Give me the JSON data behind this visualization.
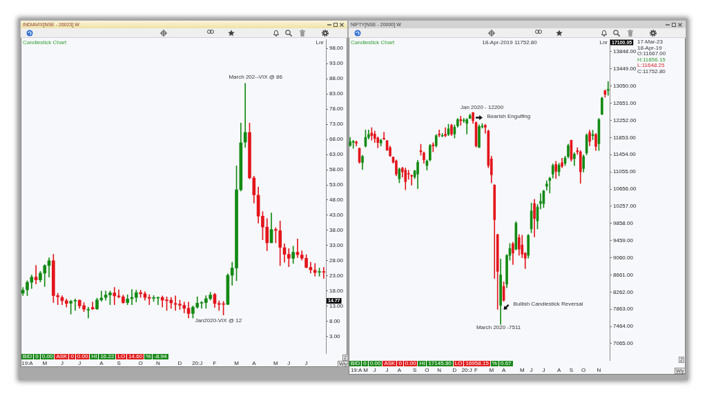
{
  "chart_data": [
    {
      "type": "candlestick",
      "title": "INDIAVIX[NSE - 26023] W",
      "subtitle": "Candlestick Chart",
      "categories": [
        null,
        "19:A",
        null,
        null,
        null,
        "M",
        null,
        null,
        null,
        "J",
        null,
        null,
        null,
        "J",
        null,
        null,
        null,
        null,
        "A",
        null,
        null,
        null,
        "S",
        null,
        null,
        null,
        null,
        "O",
        null,
        null,
        null,
        "N",
        null,
        null,
        null,
        null,
        "D",
        null,
        null,
        null,
        "20:J",
        null,
        null,
        null,
        "F",
        null,
        null,
        null,
        null,
        "M",
        null,
        null,
        null,
        "A",
        null,
        null,
        null,
        null,
        "M",
        null,
        null,
        "J",
        null,
        null,
        null,
        "J",
        null,
        null,
        null,
        null
      ],
      "ohlc": [
        [
          17.3,
          19.2,
          16.5,
          18.3
        ],
        [
          18.4,
          21.4,
          16.5,
          20.9
        ],
        [
          20.9,
          23.3,
          18.8,
          22.6
        ],
        [
          22.6,
          26.4,
          20.3,
          21.7
        ],
        [
          21.7,
          24.5,
          21.0,
          23.9
        ],
        [
          23.9,
          26.7,
          19.5,
          26.4
        ],
        [
          26.4,
          29.0,
          22.6,
          28.0
        ],
        [
          28.0,
          30.1,
          14.2,
          16.5
        ],
        [
          16.5,
          17.3,
          13.5,
          16.1
        ],
        [
          15.9,
          16.5,
          13.5,
          14.8
        ],
        [
          14.8,
          15.4,
          12.7,
          13.9
        ],
        [
          14.0,
          15.0,
          10.4,
          14.6
        ],
        [
          14.7,
          15.4,
          11.6,
          14.9
        ],
        [
          15.0,
          15.1,
          12.3,
          13.1
        ],
        [
          13.2,
          14.2,
          11.2,
          12.0
        ],
        [
          11.7,
          12.7,
          9.1,
          11.9
        ],
        [
          12.6,
          14.4,
          11.9,
          12.1
        ],
        [
          12.1,
          15.7,
          11.9,
          15.1
        ],
        [
          15.1,
          18.0,
          14.6,
          15.7
        ],
        [
          15.9,
          18.0,
          15.0,
          16.7
        ],
        [
          16.7,
          18.0,
          13.5,
          17.4
        ],
        [
          17.4,
          19.2,
          13.5,
          16.4
        ],
        [
          16.4,
          18.4,
          15.7,
          16.1
        ],
        [
          16.1,
          16.7,
          13.9,
          14.2
        ],
        [
          14.2,
          16.8,
          13.5,
          15.4
        ],
        [
          15.5,
          18.5,
          13.5,
          15.9
        ],
        [
          15.9,
          18.3,
          14.4,
          17.5
        ],
        [
          17.5,
          18.3,
          15.9,
          17.1
        ],
        [
          17.1,
          17.8,
          15.0,
          15.9
        ],
        [
          15.9,
          16.8,
          13.5,
          15.6
        ],
        [
          15.6,
          16.5,
          14.6,
          15.8
        ],
        [
          15.7,
          16.1,
          13.5,
          15.9
        ],
        [
          15.9,
          16.4,
          12.7,
          15.0
        ],
        [
          15.1,
          16.1,
          11.6,
          14.8
        ],
        [
          15.0,
          15.9,
          12.3,
          14.1
        ],
        [
          13.9,
          16.4,
          11.6,
          13.6
        ],
        [
          13.7,
          15.0,
          11.9,
          13.3
        ],
        [
          13.3,
          14.4,
          10.8,
          12.3
        ],
        [
          12.3,
          14.4,
          9.1,
          10.6
        ],
        [
          10.6,
          13.1,
          9.1,
          12.7
        ],
        [
          12.7,
          16.1,
          12.3,
          14.0
        ],
        [
          14.0,
          14.6,
          12.3,
          14.2
        ],
        [
          14.2,
          16.5,
          12.3,
          15.5
        ],
        [
          15.5,
          17.6,
          15.0,
          16.7
        ],
        [
          16.9,
          17.3,
          12.6,
          13.9
        ],
        [
          13.9,
          14.8,
          11.6,
          13.6
        ],
        [
          13.7,
          14.6,
          10.1,
          13.6
        ],
        [
          13.6,
          23.7,
          13.5,
          23.2
        ],
        [
          23.2,
          27.5,
          19.9,
          25.6
        ],
        [
          25.6,
          59.3,
          21.4,
          51.4
        ],
        [
          51.4,
          73.4,
          51.0,
          66.9
        ],
        [
          67.1,
          86.5,
          65.4,
          70.3
        ],
        [
          70.3,
          73.4,
          55.0,
          55.3
        ],
        [
          55.3,
          55.9,
          47.0,
          49.7
        ],
        [
          49.6,
          52.3,
          40.4,
          42.7
        ],
        [
          42.7,
          44.2,
          34.9,
          39.1
        ],
        [
          39.1,
          41.9,
          31.3,
          33.9
        ],
        [
          33.9,
          43.8,
          33.9,
          38.3
        ],
        [
          38.3,
          38.9,
          33.9,
          38.0
        ],
        [
          37.9,
          41.1,
          26.4,
          32.4
        ],
        [
          32.3,
          33.6,
          27.5,
          30.1
        ],
        [
          30.1,
          32.0,
          26.0,
          28.8
        ],
        [
          28.8,
          32.8,
          27.1,
          30.8
        ],
        [
          30.8,
          35.2,
          29.0,
          30.0
        ],
        [
          29.9,
          31.3,
          28.2,
          28.8
        ],
        [
          28.8,
          30.0,
          25.6,
          25.8
        ],
        [
          25.8,
          27.5,
          23.9,
          25.0
        ],
        [
          24.9,
          27.1,
          22.9,
          24.1
        ],
        [
          24.2,
          25.6,
          22.9,
          24.4
        ],
        [
          24.4,
          25.8,
          22.2,
          24.2
        ]
      ],
      "colors": [
        "#138a13",
        "#138a13",
        "#138a13",
        "#e3151b",
        "#138a13",
        "#138a13",
        "#138a13",
        "#e3151b",
        "#e3151b",
        "#e3151b",
        "#e3151b",
        "#138a13",
        "#138a13",
        "#e3151b",
        "#e3151b",
        "#138a13",
        "#e3151b",
        "#138a13",
        "#138a13",
        "#138a13",
        "#138a13",
        "#e3151b",
        "#e3151b",
        "#e3151b",
        "#138a13",
        "#138a13",
        "#138a13",
        "#e3151b",
        "#e3151b",
        "#e3151b",
        "#138a13",
        "#138a13",
        "#e3151b",
        "#e3151b",
        "#e3151b",
        "#e3151b",
        "#e3151b",
        "#e3151b",
        "#e3151b",
        "#138a13",
        "#138a13",
        "#138a13",
        "#138a13",
        "#138a13",
        "#e3151b",
        "#e3151b",
        "#e3151b",
        "#138a13",
        "#138a13",
        "#138a13",
        "#138a13",
        "#138a13",
        "#e3151b",
        "#e3151b",
        "#e3151b",
        "#e3151b",
        "#e3151b",
        "#138a13",
        "#e3151b",
        "#e3151b",
        "#e3151b",
        "#e3151b",
        "#138a13",
        "#e3151b",
        "#e3151b",
        "#e3151b",
        "#e3151b",
        "#e3151b",
        "#138a13",
        "#e3151b"
      ],
      "ylim": [
        -2.5,
        101
      ],
      "yticks": [
        {
          "value": 3,
          "label": "3.00"
        },
        {
          "value": 8,
          "label": "8.00"
        },
        {
          "value": 13,
          "label": "13.00"
        },
        {
          "value": 18,
          "label": "18.00"
        },
        {
          "value": 23,
          "label": "23.00"
        },
        {
          "value": 28,
          "label": "28.00"
        },
        {
          "value": 33,
          "label": "33.00"
        },
        {
          "value": 38,
          "label": "38.00"
        },
        {
          "value": 43,
          "label": "43.00"
        },
        {
          "value": 48,
          "label": "48.00"
        },
        {
          "value": 53,
          "label": "53.00"
        },
        {
          "value": 58,
          "label": "58.00"
        },
        {
          "value": 63,
          "label": "63.00"
        },
        {
          "value": 68,
          "label": "68.00"
        },
        {
          "value": 73,
          "label": "73.00"
        },
        {
          "value": 78,
          "label": "78.00"
        },
        {
          "value": 83,
          "label": "83.00"
        },
        {
          "value": 88,
          "label": "88.00"
        },
        {
          "value": 93,
          "label": "93.00"
        },
        {
          "value": 98,
          "label": "98.00"
        }
      ],
      "annotations": [
        "March 202--VIX @ 86",
        "Jan2020-VIX @ 12",
        {
          "text": "14.77",
          "y": 14.77
        },
        "Lnr",
        "BID",
        "0",
        "0.00",
        "ASK",
        "0",
        "0.00",
        "HI",
        "16.22",
        "LO",
        "14.60",
        "%",
        "-8.94",
        "Z",
        "Wly"
      ]
    },
    {
      "type": "candlestick",
      "title": "NIFTY[NSE - 20000] W",
      "subtitle": "Candlestick Chart",
      "categories": [
        null,
        null,
        "19:A",
        null,
        null,
        "M",
        null,
        null,
        "J",
        null,
        null,
        null,
        "J",
        null,
        null,
        null,
        "A",
        null,
        null,
        null,
        null,
        "S",
        null,
        null,
        null,
        "O",
        null,
        null,
        null,
        "N",
        null,
        null,
        null,
        null,
        "D",
        null,
        null,
        null,
        "20:J",
        null,
        null,
        "F",
        null,
        null,
        null,
        null,
        "M",
        null,
        null,
        null,
        "A",
        null,
        null,
        null,
        null,
        null,
        "M",
        null,
        null,
        "J",
        null,
        null,
        null,
        "J",
        null,
        null,
        null,
        null,
        "A",
        null,
        null,
        null,
        "S",
        null,
        null,
        null,
        "O",
        null,
        null,
        null,
        null,
        "N",
        null,
        null,
        null
      ],
      "ohlc": [
        [
          11667,
          11856.15,
          11648.25,
          11752.8
        ],
        [
          11740,
          11789,
          11602,
          11762
        ],
        [
          11750,
          11773,
          11655,
          11720
        ],
        [
          11602,
          11613,
          11254,
          11281
        ],
        [
          11270,
          11441,
          11110,
          11414
        ],
        [
          11655,
          12029,
          11628,
          11858
        ],
        [
          11858,
          12029,
          11816,
          11923
        ],
        [
          11960,
          12083,
          11789,
          11896
        ],
        [
          11933,
          12003,
          11735,
          11832
        ],
        [
          11842,
          11869,
          11612,
          11735
        ],
        [
          11725,
          11816,
          11655,
          11789
        ],
        [
          11837,
          11976,
          11805,
          11816
        ],
        [
          11778,
          11789,
          11548,
          11559
        ],
        [
          11618,
          11655,
          11414,
          11425
        ],
        [
          11398,
          11404,
          11254,
          11281
        ],
        [
          11308,
          11334,
          10960,
          11003
        ],
        [
          10896,
          11147,
          10799,
          11120
        ],
        [
          11142,
          11163,
          10933,
          11056
        ],
        [
          11094,
          11147,
          10639,
          10826
        ],
        [
          11018,
          11094,
          10880,
          11003
        ],
        [
          10965,
          10987,
          10746,
          10955
        ],
        [
          10938,
          11094,
          10896,
          11078
        ],
        [
          11003,
          11324,
          10666,
          11275
        ],
        [
          11548,
          11698,
          11441,
          11521
        ],
        [
          11495,
          11521,
          11254,
          11334
        ],
        [
          11201,
          11334,
          11094,
          11308
        ],
        [
          11334,
          11698,
          11308,
          11666
        ],
        [
          11682,
          11735,
          11521,
          11655
        ],
        [
          11666,
          11923,
          11628,
          11896
        ],
        [
          11933,
          12029,
          11869,
          11912
        ],
        [
          11885,
          11949,
          11869,
          11896
        ],
        [
          11928,
          12083,
          11869,
          11896
        ],
        [
          11923,
          12163,
          11896,
          12056
        ],
        [
          12136,
          12163,
          11896,
          11933
        ],
        [
          11933,
          12147,
          11842,
          12094
        ],
        [
          12126,
          12297,
          12094,
          12270
        ],
        [
          12270,
          12350,
          12136,
          12243
        ],
        [
          12243,
          12300,
          12200,
          12254
        ],
        [
          12180,
          12297,
          11933,
          12270
        ],
        [
          12297,
          12400,
          12290,
          12361
        ],
        [
          12431,
          12440,
          12180,
          12243
        ],
        [
          12201,
          12220,
          11630,
          11655
        ],
        [
          11623,
          12150,
          11615,
          12110
        ],
        [
          12100,
          12180,
          12070,
          12120
        ],
        [
          12136,
          12160,
          11950,
          12090
        ],
        [
          12003,
          12029,
          11150,
          11201
        ],
        [
          11356,
          11420,
          10800,
          10987
        ],
        [
          10746,
          10760,
          8580,
          9944
        ],
        [
          9596,
          9610,
          7858,
          8740
        ],
        [
          7954,
          9030,
          7511,
          8660
        ],
        [
          8393,
          8500,
          8045,
          8072
        ],
        [
          8446,
          9130,
          8360,
          9115
        ],
        [
          9115,
          9390,
          9000,
          9275
        ],
        [
          9382,
          9420,
          8900,
          9168
        ],
        [
          9259,
          9900,
          9240,
          9863
        ],
        [
          9526,
          9600,
          9116,
          9259
        ],
        [
          9355,
          9584,
          9060,
          9142
        ],
        [
          9168,
          9180,
          8806,
          9045
        ],
        [
          9115,
          9600,
          9050,
          9580
        ],
        [
          9730,
          10330,
          9640,
          10147
        ],
        [
          10318,
          10420,
          9544,
          9970
        ],
        [
          9917,
          10300,
          9728,
          10238
        ],
        [
          10318,
          10550,
          10194,
          10372
        ],
        [
          10318,
          10630,
          10223,
          10612
        ],
        [
          10719,
          10847,
          10630,
          10773
        ],
        [
          10853,
          10933,
          10562,
          10906
        ],
        [
          11003,
          11241,
          10910,
          11201
        ],
        [
          11227,
          11300,
          10900,
          11067
        ],
        [
          11056,
          11256,
          10960,
          11211
        ],
        [
          11265,
          11373,
          11150,
          11185
        ],
        [
          11254,
          11420,
          11200,
          11377
        ],
        [
          11414,
          11700,
          11380,
          11666
        ],
        [
          11789,
          11795,
          11300,
          11345
        ],
        [
          11361,
          11500,
          11200,
          11468
        ],
        [
          11548,
          11618,
          11460,
          11521
        ],
        [
          11521,
          11550,
          10790,
          11056
        ],
        [
          11131,
          11450,
          11050,
          11414
        ],
        [
          11495,
          11940,
          11450,
          11912
        ],
        [
          11970,
          12025,
          11660,
          11762
        ],
        [
          11896,
          12025,
          11800,
          11923
        ],
        [
          11923,
          11950,
          11550,
          11645
        ],
        [
          11709,
          12300,
          11550,
          12270
        ],
        [
          12393,
          12790,
          12380,
          12770
        ],
        [
          12939,
          12960,
          12790,
          12858
        ],
        [
          12950,
          13153,
          12832,
          12970
        ]
      ],
      "colors": [
        "#138a13",
        "#138a13",
        "#e3151b",
        "#e3151b",
        "#138a13",
        "#138a13",
        "#138a13",
        "#e3151b",
        "#e3151b",
        "#e3151b",
        "#138a13",
        "#e3151b",
        "#e3151b",
        "#e3151b",
        "#e3151b",
        "#e3151b",
        "#138a13",
        "#e3151b",
        "#e3151b",
        "#e3151b",
        "#e3151b",
        "#138a13",
        "#138a13",
        "#e3151b",
        "#e3151b",
        "#138a13",
        "#138a13",
        "#e3151b",
        "#138a13",
        "#e3151b",
        "#138a13",
        "#e3151b",
        "#138a13",
        "#e3151b",
        "#138a13",
        "#138a13",
        "#e3151b",
        "#138a13",
        "#138a13",
        "#138a13",
        "#e3151b",
        "#e3151b",
        "#138a13",
        "#138a13",
        "#e3151b",
        "#e3151b",
        "#e3151b",
        "#e3151b",
        "#e3151b",
        "#138a13",
        "#e3151b",
        "#138a13",
        "#138a13",
        "#e3151b",
        "#138a13",
        "#e3151b",
        "#e3151b",
        "#e3151b",
        "#138a13",
        "#138a13",
        "#e3151b",
        "#138a13",
        "#138a13",
        "#138a13",
        "#138a13",
        "#138a13",
        "#138a13",
        "#e3151b",
        "#138a13",
        "#e3151b",
        "#138a13",
        "#138a13",
        "#e3151b",
        "#138a13",
        "#e3151b",
        "#e3151b",
        "#138a13",
        "#138a13",
        "#e3151b",
        "#138a13",
        "#e3151b",
        "#138a13",
        "#138a13",
        "#e3151b",
        "#138a13"
      ],
      "ylim": [
        6680,
        14135
      ],
      "yticks": [
        {
          "value": 7065,
          "label": "7065.00"
        },
        {
          "value": 7464,
          "label": "7464.00"
        },
        {
          "value": 7863,
          "label": "7863.00"
        },
        {
          "value": 8262,
          "label": "8262.00"
        },
        {
          "value": 8661,
          "label": "8661.00"
        },
        {
          "value": 9060,
          "label": "9060.00"
        },
        {
          "value": 9459,
          "label": "9459.00"
        },
        {
          "value": 9858,
          "label": "9858.00"
        },
        {
          "value": 10257,
          "label": "10257.00"
        },
        {
          "value": 10656,
          "label": "10656.00"
        },
        {
          "value": 11055,
          "label": "11055.00"
        },
        {
          "value": 11454,
          "label": "11454.00"
        },
        {
          "value": 11853,
          "label": "11853.00"
        },
        {
          "value": 12252,
          "label": "12252.00"
        },
        {
          "value": 12651,
          "label": "12651.00"
        },
        {
          "value": 13050,
          "label": "13050.00"
        },
        {
          "value": 13449,
          "label": "13449.00"
        },
        {
          "value": 13848,
          "label": "13848.00"
        }
      ],
      "annotations": [
        "Jan 2020 - 12200",
        "Bearish Engulfing",
        "Bullish Candlestick Reversal",
        "March 2020 -7511",
        "18-Apr-2019 11752.80",
        "17100.05",
        "Lnr",
        "17-Mar-23",
        "18-Apr-19",
        "O:11667.00",
        "H:11856.15",
        "L:11648.25",
        "C:11752.80",
        "BID",
        "0",
        "0.00",
        "ASK",
        "0",
        "0.00",
        "HI",
        "17145.80",
        "LO",
        "16958.15",
        "%",
        "0.67",
        "Z",
        "Wly"
      ]
    }
  ]
}
